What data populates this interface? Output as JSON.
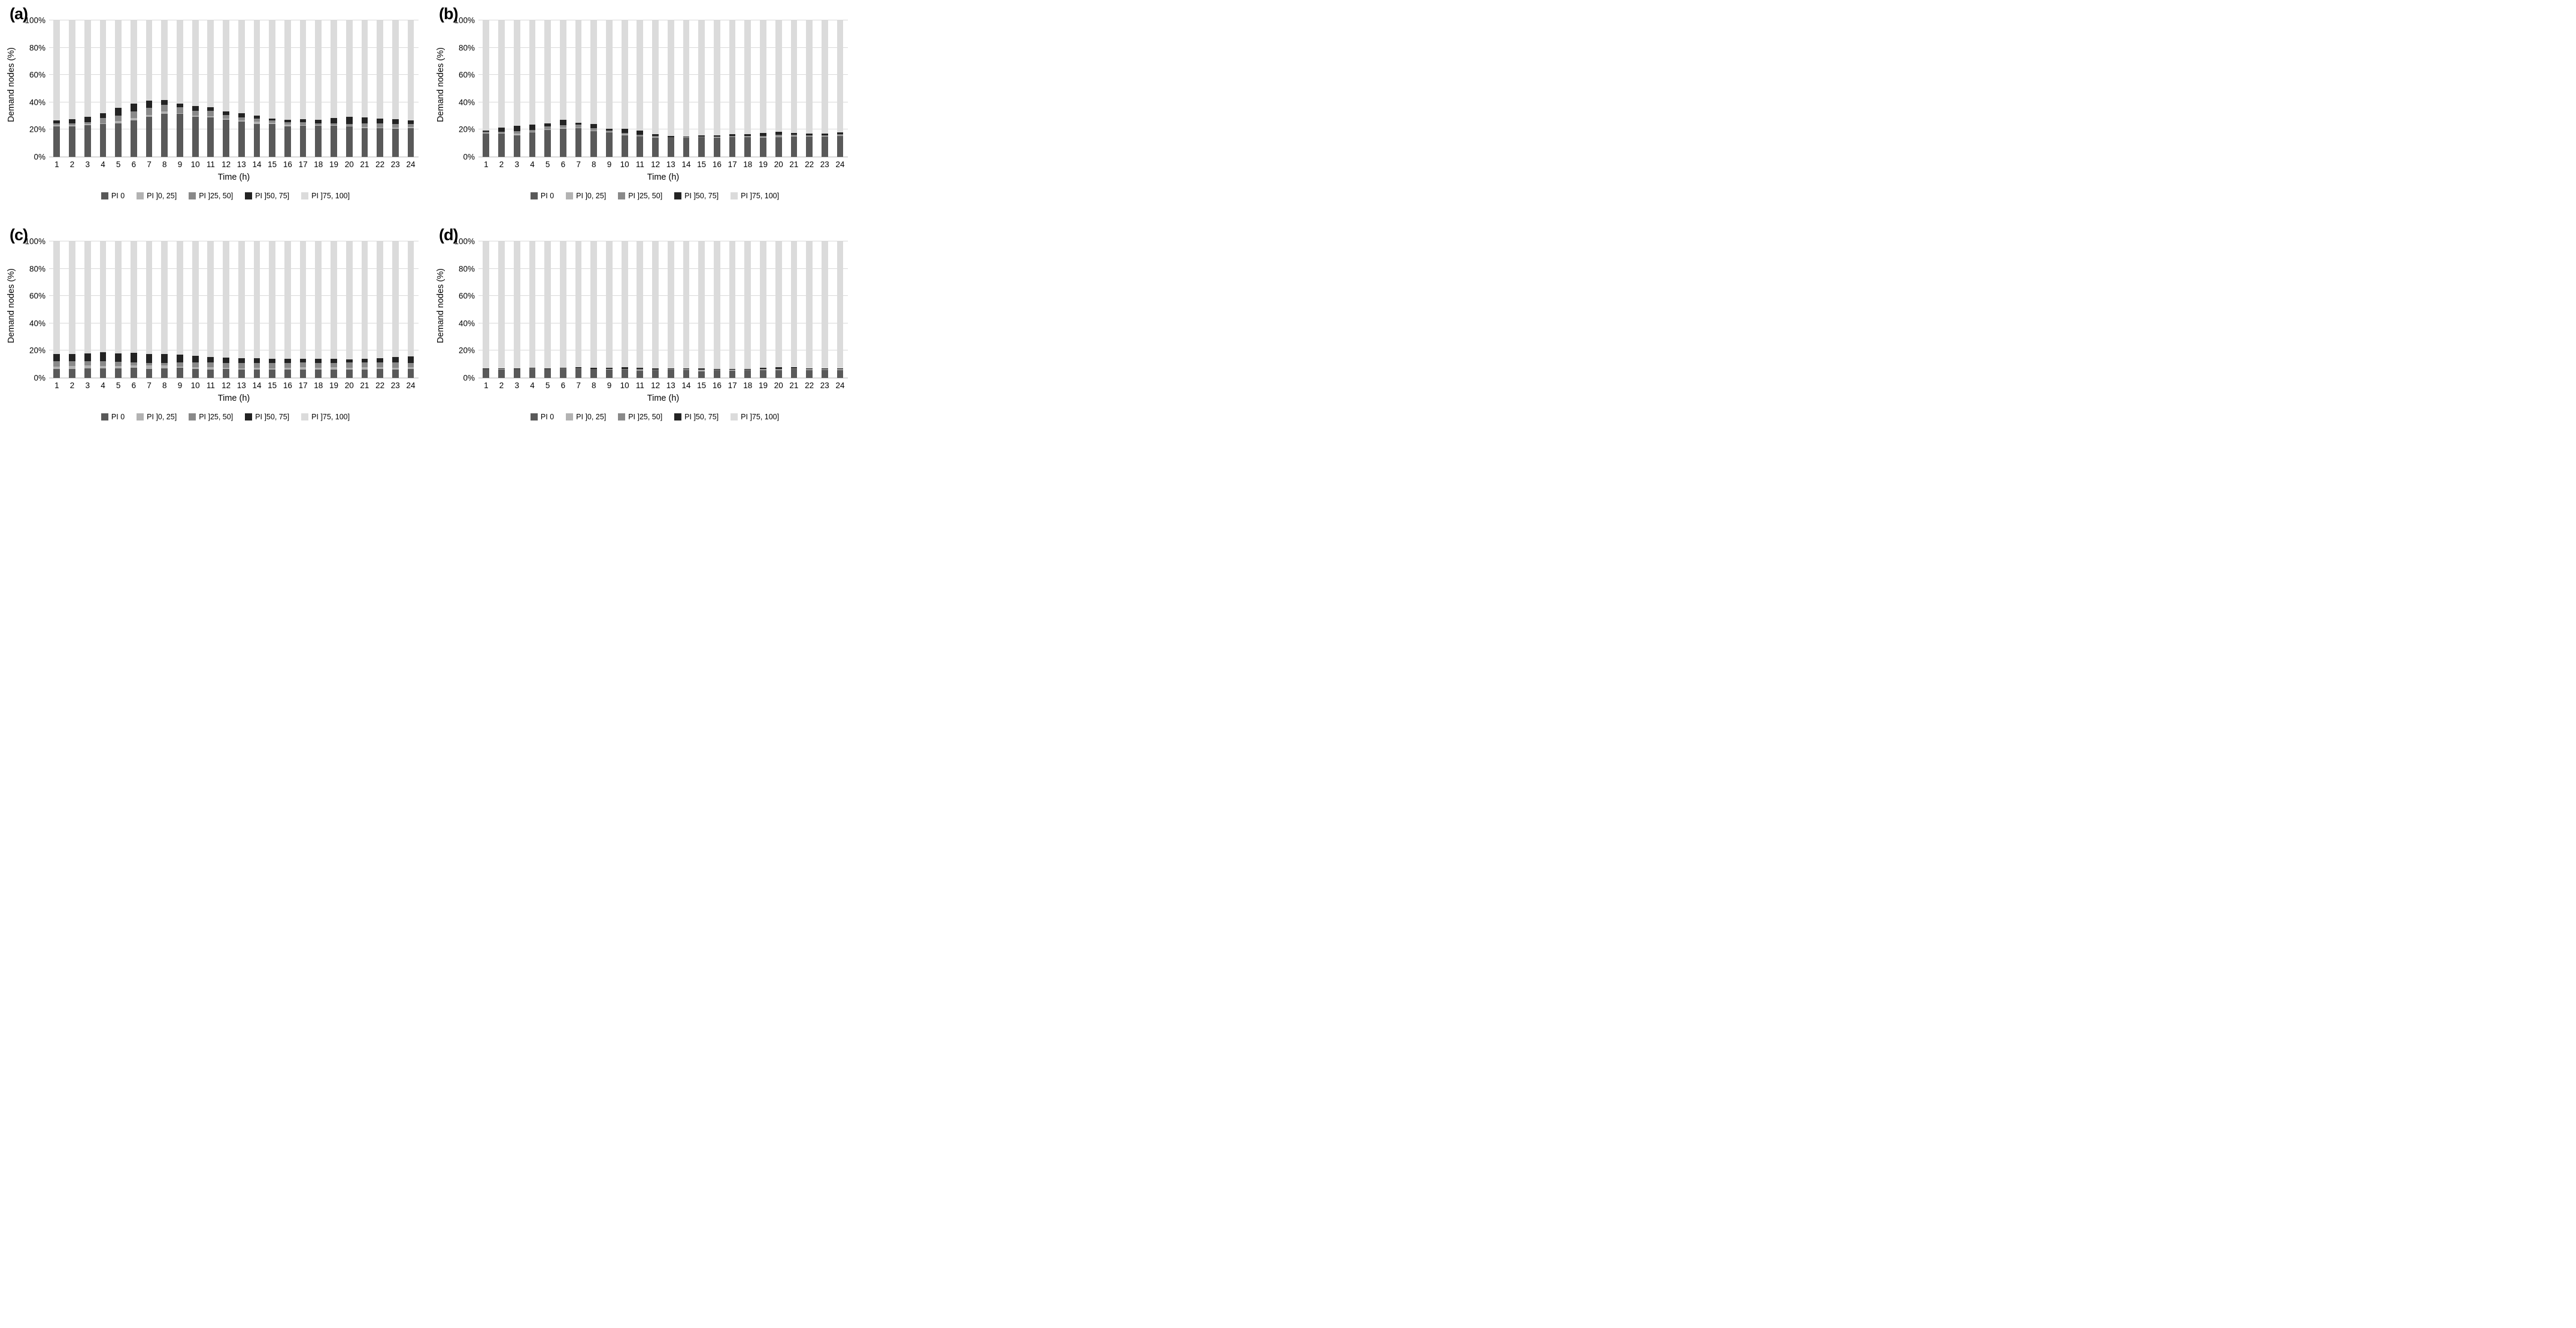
{
  "figure": {
    "background": "#ffffff",
    "gridline_color": "#d9d9d9"
  },
  "chart_data": [
    {
      "panel_label": "(a)",
      "type": "bar",
      "subtype": "stacked-100",
      "ylabel": "Demand nodes (%)",
      "xlabel": "Time (h)",
      "ylim": [
        0,
        100
      ],
      "yticks": [
        "0%",
        "20%",
        "40%",
        "60%",
        "80%",
        "100%"
      ],
      "grid": true,
      "legend_position": "bottom",
      "categories": [
        1,
        2,
        3,
        4,
        5,
        6,
        7,
        8,
        9,
        10,
        11,
        12,
        13,
        14,
        15,
        16,
        17,
        18,
        19,
        20,
        21,
        22,
        23,
        24
      ],
      "series": [
        {
          "name": "PI 0",
          "color": "#595959",
          "values": [
            22.3,
            22.3,
            23.3,
            24.2,
            24.4,
            26.9,
            29.6,
            31.8,
            31.8,
            29.3,
            29.1,
            27.2,
            26.0,
            24.2,
            24.2,
            22.3,
            22.7,
            22.7,
            22.7,
            22.2,
            21.1,
            20.9,
            20.6,
            21.0
          ]
        },
        {
          "name": "PI ]0, 25]",
          "color": "#b3b3b3",
          "values": [
            1.0,
            1.0,
            0.9,
            0.4,
            1.8,
            1.8,
            1.2,
            1.6,
            0.4,
            1.1,
            0.7,
            1.0,
            0.7,
            1.7,
            1.0,
            1.4,
            0.6,
            0.6,
            0.6,
            0.6,
            0.7,
            0.4,
            0.7,
            0.8
          ]
        },
        {
          "name": "PI ]25, 50]",
          "color": "#898989",
          "values": [
            1.2,
            1.4,
            1.1,
            4.0,
            4.2,
            4.6,
            5.2,
            4.9,
            4.1,
            3.2,
            3.9,
            2.6,
            2.1,
            2.1,
            1.6,
            1.9,
            2.2,
            1.2,
            1.2,
            1.4,
            2.6,
            3.1,
            2.8,
            2.5
          ]
        },
        {
          "name": "PI ]50, 75]",
          "color": "#232323",
          "values": [
            2.2,
            3.0,
            4.2,
            3.5,
            5.5,
            5.8,
            5.3,
            3.4,
            2.9,
            3.5,
            2.8,
            2.6,
            3.3,
            2.1,
            1.4,
            1.7,
            2.1,
            2.8,
            4.1,
            5.0,
            4.7,
            3.6,
            3.4,
            2.5
          ]
        },
        {
          "name": "PI ]75, 100]",
          "color": "#dbdbdb",
          "values": [
            73.3,
            72.3,
            70.5,
            67.9,
            64.1,
            60.9,
            58.7,
            58.3,
            60.8,
            62.9,
            63.5,
            66.6,
            67.9,
            69.9,
            71.8,
            72.7,
            72.4,
            72.7,
            71.4,
            70.8,
            70.9,
            72.0,
            72.5,
            73.2
          ]
        }
      ]
    },
    {
      "panel_label": "(b)",
      "type": "bar",
      "subtype": "stacked-100",
      "ylabel": "Demand nodes (%)",
      "xlabel": "Time (h)",
      "ylim": [
        0,
        100
      ],
      "yticks": [
        "0%",
        "20%",
        "40%",
        "60%",
        "80%",
        "100%"
      ],
      "grid": true,
      "legend_position": "bottom",
      "categories": [
        1,
        2,
        3,
        4,
        5,
        6,
        7,
        8,
        9,
        10,
        11,
        12,
        13,
        14,
        15,
        16,
        17,
        18,
        19,
        20,
        21,
        22,
        23,
        24
      ],
      "series": [
        {
          "name": "PI 0",
          "color": "#595959",
          "values": [
            16.9,
            17.3,
            16.0,
            18.1,
            19.8,
            20.8,
            21.2,
            18.8,
            17.8,
            15.7,
            14.7,
            14.2,
            14.3,
            14.1,
            14.3,
            14.2,
            14.4,
            14.4,
            14.0,
            14.6,
            15.0,
            14.9,
            15.1,
            15.2
          ]
        },
        {
          "name": "PI ]0, 25]",
          "color": "#b3b3b3",
          "values": [
            0.5,
            0.4,
            0.9,
            0.4,
            0.5,
            0.7,
            0.4,
            0.7,
            0.7,
            0.9,
            0.4,
            0.4,
            0.2,
            0.2,
            0.3,
            0.3,
            0.3,
            0.4,
            0.5,
            0.4,
            0.4,
            0.4,
            0.4,
            0.4
          ]
        },
        {
          "name": "PI ]25, 50]",
          "color": "#898989",
          "values": [
            0.9,
            0.8,
            1.8,
            1.4,
            2.1,
            1.6,
            2.0,
            1.7,
            0.6,
            1.0,
            1.1,
            0.6,
            0.2,
            0.2,
            0.4,
            0.4,
            0.7,
            0.6,
            0.7,
            1.3,
            0.7,
            0.5,
            0.5,
            1.0
          ]
        },
        {
          "name": "PI ]50, 75]",
          "color": "#232323",
          "values": [
            1.2,
            3.0,
            4.3,
            3.6,
            2.2,
            4.2,
            1.6,
            2.9,
            1.4,
            3.0,
            3.3,
            1.3,
            0.5,
            0.6,
            0.9,
            1.0,
            1.1,
            1.2,
            2.2,
            2.2,
            1.6,
            1.5,
            1.1,
            1.4
          ]
        },
        {
          "name": "PI ]75, 100]",
          "color": "#dbdbdb",
          "values": [
            80.5,
            78.5,
            77.0,
            76.5,
            75.4,
            72.7,
            74.8,
            75.9,
            79.5,
            79.4,
            80.5,
            83.5,
            84.8,
            84.9,
            84.1,
            84.1,
            83.5,
            83.4,
            82.6,
            81.5,
            82.3,
            82.7,
            82.9,
            82.0
          ]
        }
      ]
    },
    {
      "panel_label": "(c)",
      "type": "bar",
      "subtype": "stacked-100",
      "ylabel": "Demand nodes (%)",
      "xlabel": "Time (h)",
      "ylim": [
        0,
        100
      ],
      "yticks": [
        "0%",
        "20%",
        "40%",
        "60%",
        "80%",
        "100%"
      ],
      "grid": true,
      "legend_position": "bottom",
      "categories": [
        1,
        2,
        3,
        4,
        5,
        6,
        7,
        8,
        9,
        10,
        11,
        12,
        13,
        14,
        15,
        16,
        17,
        18,
        19,
        20,
        21,
        22,
        23,
        24
      ],
      "series": [
        {
          "name": "PI 0",
          "color": "#595959",
          "values": [
            6.5,
            6.7,
            6.9,
            6.9,
            6.9,
            7.3,
            6.8,
            7.1,
            7.3,
            6.5,
            6.3,
            6.5,
            6.3,
            6.0,
            6.1,
            6.0,
            6.2,
            6.0,
            6.2,
            6.0,
            6.2,
            6.5,
            6.2,
            6.4
          ]
        },
        {
          "name": "PI ]0, 25]",
          "color": "#b3b3b3",
          "values": [
            2.0,
            2.0,
            2.2,
            1.8,
            2.0,
            1.8,
            2.2,
            2.0,
            1.1,
            1.6,
            1.7,
            0.8,
            0.8,
            1.3,
            1.1,
            1.3,
            1.6,
            1.4,
            1.8,
            1.6,
            1.6,
            1.4,
            1.2,
            1.3
          ]
        },
        {
          "name": "PI ]25, 50]",
          "color": "#898989",
          "values": [
            4.0,
            3.8,
            3.4,
            3.7,
            2.8,
            2.2,
            2.1,
            1.9,
            3.0,
            3.4,
            3.2,
            3.8,
            3.8,
            3.6,
            3.7,
            3.8,
            3.4,
            3.7,
            3.2,
            3.7,
            3.5,
            3.5,
            3.8,
            3.2
          ]
        },
        {
          "name": "PI ]50, 75]",
          "color": "#232323",
          "values": [
            5.0,
            4.9,
            5.6,
            6.6,
            6.5,
            7.0,
            6.5,
            6.7,
            5.9,
            4.7,
            4.2,
            3.8,
            3.8,
            3.5,
            3.3,
            2.8,
            2.9,
            2.9,
            2.8,
            2.4,
            2.7,
            3.1,
            4.3,
            4.8
          ]
        },
        {
          "name": "PI ]75, 100]",
          "color": "#dbdbdb",
          "values": [
            82.5,
            82.6,
            81.9,
            81.0,
            81.8,
            81.7,
            82.4,
            82.3,
            82.7,
            83.8,
            84.6,
            85.1,
            85.3,
            85.6,
            85.8,
            86.1,
            85.9,
            86.0,
            86.0,
            86.3,
            86.0,
            85.5,
            84.5,
            84.3
          ]
        }
      ]
    },
    {
      "panel_label": "(d)",
      "type": "bar",
      "subtype": "stacked-100",
      "ylabel": "Demand nodes (%)",
      "xlabel": "Time (h)",
      "ylim": [
        0,
        100
      ],
      "yticks": [
        "0%",
        "20%",
        "40%",
        "60%",
        "80%",
        "100%"
      ],
      "grid": true,
      "legend_position": "bottom",
      "categories": [
        1,
        2,
        3,
        4,
        5,
        6,
        7,
        8,
        9,
        10,
        11,
        12,
        13,
        14,
        15,
        16,
        17,
        18,
        19,
        20,
        21,
        22,
        23,
        24
      ],
      "series": [
        {
          "name": "PI 0",
          "color": "#595959",
          "values": [
            6.4,
            6.3,
            6.4,
            6.4,
            6.4,
            6.7,
            6.5,
            6.5,
            6.0,
            6.1,
            5.4,
            5.6,
            6.0,
            5.5,
            5.0,
            5.6,
            5.4,
            5.5,
            5.5,
            5.8,
            6.4,
            5.7,
            5.6,
            5.8
          ]
        },
        {
          "name": "PI ]0, 25]",
          "color": "#b3b3b3",
          "values": [
            0.1,
            0.1,
            0.1,
            0.1,
            0.1,
            0.1,
            0.1,
            0.1,
            0.4,
            0.2,
            0.4,
            0.2,
            0.2,
            0.4,
            0.5,
            0.3,
            0.3,
            0.4,
            0.5,
            0.4,
            0.2,
            0.3,
            0.3,
            0.4
          ]
        },
        {
          "name": "PI ]25, 50]",
          "color": "#898989",
          "values": [
            0.3,
            0.2,
            0.3,
            0.4,
            0.3,
            0.2,
            0.3,
            0.2,
            0.1,
            0.1,
            0.6,
            0.5,
            0.3,
            0.6,
            0.8,
            0.3,
            0.6,
            0.4,
            0.4,
            0.5,
            0.4,
            0.6,
            0.7,
            0.6
          ]
        },
        {
          "name": "PI ]50, 75]",
          "color": "#232323",
          "values": [
            0.1,
            0.5,
            0.4,
            0.5,
            0.4,
            0.4,
            1.1,
            0.7,
            1.0,
            1.6,
            1.0,
            0.6,
            0.5,
            0.5,
            0.6,
            0.6,
            0.4,
            0.3,
            1.0,
            1.3,
            1.0,
            0.3,
            0.3,
            0.1
          ]
        },
        {
          "name": "PI ]75, 100]",
          "color": "#dbdbdb",
          "values": [
            93.1,
            92.9,
            92.8,
            92.6,
            92.8,
            92.6,
            92.0,
            92.5,
            92.5,
            92.0,
            92.6,
            93.1,
            93.0,
            93.0,
            93.1,
            93.2,
            93.3,
            93.4,
            92.6,
            92.0,
            92.0,
            93.1,
            93.1,
            93.1
          ]
        }
      ]
    }
  ]
}
